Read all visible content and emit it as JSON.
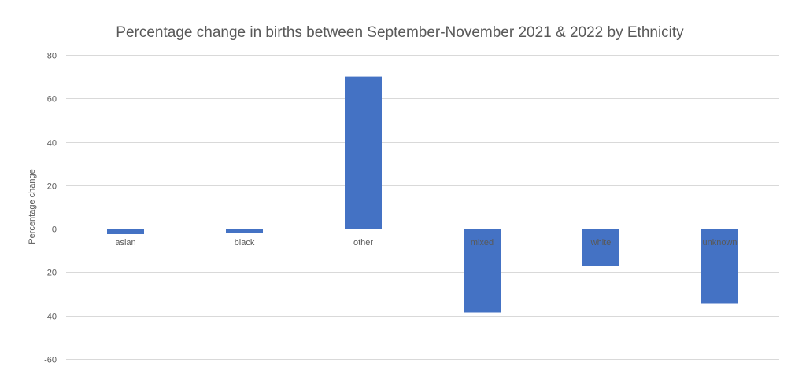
{
  "chart_data": {
    "type": "bar",
    "title": "Percentage change in births between September-November 2021 & 2022 by Ethnicity",
    "xlabel": "",
    "ylabel": "Percentage change",
    "ylim": [
      -60,
      80
    ],
    "yticks": [
      80,
      60,
      40,
      20,
      0,
      -20,
      -40,
      -60
    ],
    "grid": true,
    "categories": [
      "asian",
      "black",
      "other",
      "mixed",
      "white",
      "unknown"
    ],
    "values": [
      -2.5,
      -2.0,
      70,
      -38.5,
      -17,
      -34.5
    ],
    "bar_color": "#4472c4"
  }
}
